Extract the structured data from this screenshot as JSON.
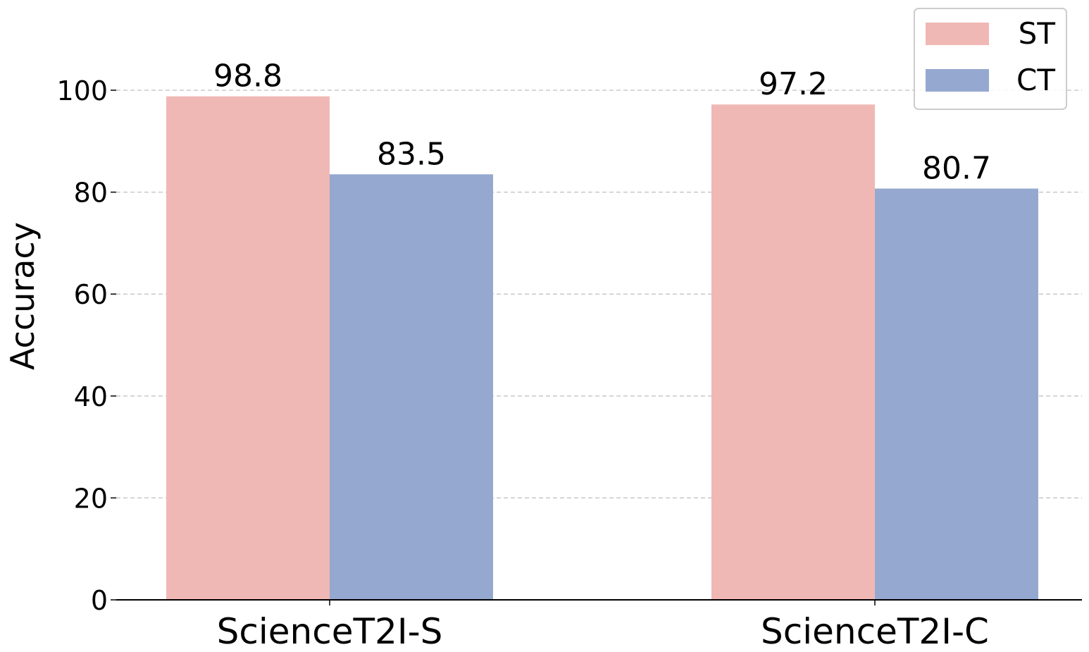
{
  "chart_data": {
    "type": "bar",
    "y_label": "Accuracy",
    "categories": [
      "ScienceT2I-S",
      "ScienceT2I-C"
    ],
    "series": [
      {
        "name": "ST",
        "color": "#f0b8b5",
        "values": [
          98.8,
          97.2
        ]
      },
      {
        "name": "CT",
        "color": "#95a8d0",
        "values": [
          83.5,
          80.7
        ]
      }
    ],
    "ylim": [
      0,
      105
    ],
    "yticks": [
      0,
      20,
      40,
      60,
      80,
      100
    ],
    "grid": true,
    "legend": "upper right"
  }
}
